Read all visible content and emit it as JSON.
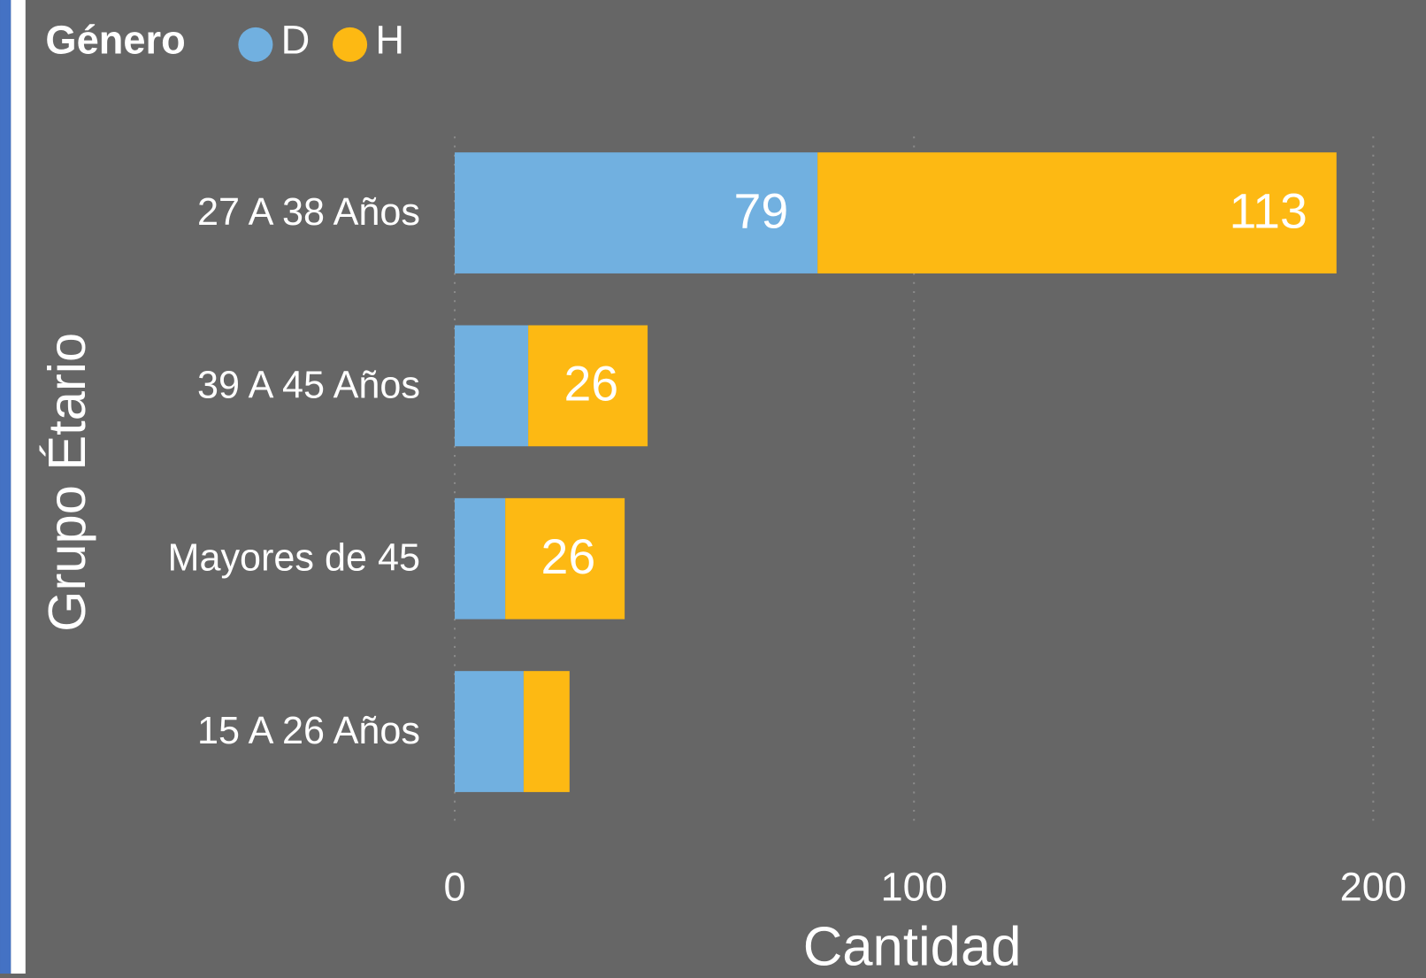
{
  "chart_data": {
    "type": "bar",
    "orientation": "horizontal",
    "stacked": true,
    "legend_title": "Género",
    "categories": [
      "27 A 38 Años",
      "39 A 45 Años",
      "Mayores de 45",
      "15 A 26 Años"
    ],
    "series": [
      {
        "name": "D",
        "color": "#71b0e0",
        "values": [
          79,
          16,
          11,
          15
        ],
        "value_labels": [
          "79",
          null,
          null,
          null
        ]
      },
      {
        "name": "H",
        "color": "#fdb913",
        "values": [
          113,
          26,
          26,
          10
        ],
        "value_labels": [
          "113",
          "26",
          "26",
          null
        ]
      }
    ],
    "xlabel": "Cantidad",
    "ylabel": "Grupo Étario",
    "xlim": [
      0,
      200
    ],
    "xticks": [
      0,
      100,
      200
    ],
    "grid": true
  }
}
